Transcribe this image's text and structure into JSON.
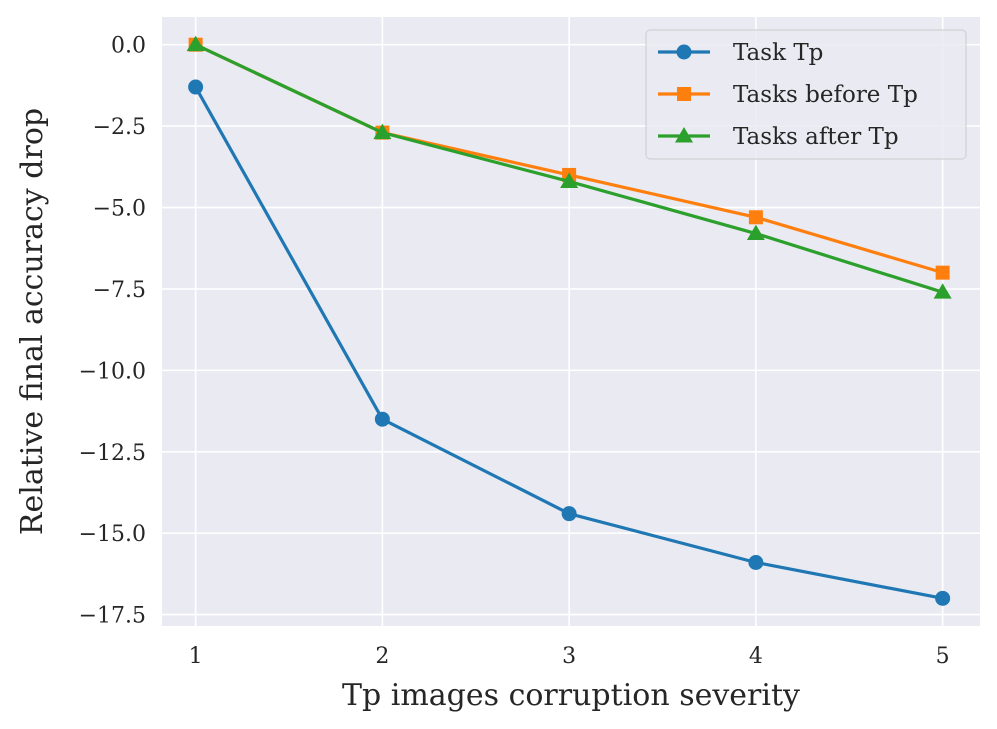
{
  "chart_data": {
    "type": "line",
    "title": "",
    "xlabel": "Tp images corruption severity",
    "ylabel": "Relative final accuracy drop",
    "x": [
      1,
      2,
      3,
      4,
      5
    ],
    "x_tick_labels": [
      "1",
      "2",
      "3",
      "4",
      "5"
    ],
    "xlim": [
      0.82,
      5.2
    ],
    "y_ticks": [
      0.0,
      -2.5,
      -5.0,
      -7.5,
      -10.0,
      -12.5,
      -15.0,
      -17.5
    ],
    "y_tick_labels": [
      "0.0",
      "−2.5",
      "−5.0",
      "−7.5",
      "−10.0",
      "−12.5",
      "−15.0",
      "−17.5"
    ],
    "ylim": [
      -17.85,
      0.85
    ],
    "grid": true,
    "legend_position": "top-right",
    "series": [
      {
        "name": "Task Tp",
        "color": "#1f77b4",
        "marker": "circle",
        "values": [
          -1.3,
          -11.5,
          -14.4,
          -15.9,
          -17.0
        ]
      },
      {
        "name": "Tasks before Tp",
        "color": "#ff7f0e",
        "marker": "square",
        "values": [
          0.0,
          -2.7,
          -4.0,
          -5.3,
          -7.0
        ]
      },
      {
        "name": "Tasks after Tp",
        "color": "#2ca02c",
        "marker": "triangle",
        "values": [
          0.0,
          -2.7,
          -4.2,
          -5.8,
          -7.6
        ]
      }
    ],
    "colors": {
      "plot_background": "#eaeaf2",
      "grid": "#ffffff",
      "text": "#262626"
    }
  }
}
